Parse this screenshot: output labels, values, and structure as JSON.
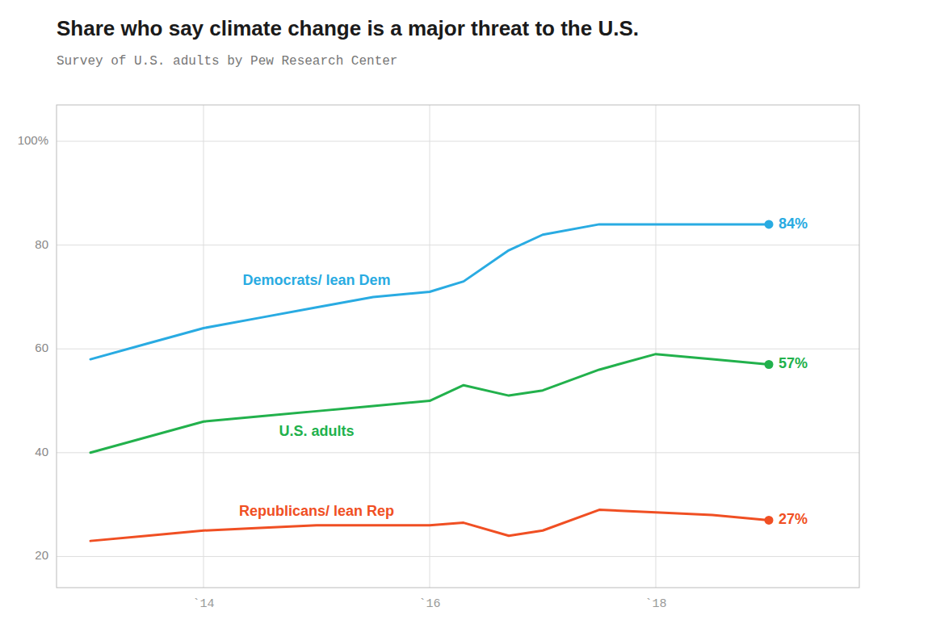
{
  "chart_data": {
    "type": "line",
    "title": "Share who say climate change is a major threat to the U.S.",
    "subtitle": "Survey of U.S. adults by Pew Research Center",
    "x": [
      2013,
      2013.5,
      2014,
      2014.5,
      2015,
      2015.5,
      2016,
      2016.3,
      2016.7,
      2017,
      2017.5,
      2018,
      2018.5,
      2019
    ],
    "series": [
      {
        "name": "Democrats/ lean Dem",
        "color": "#29abe2",
        "values": [
          58,
          61,
          64,
          66,
          68,
          70,
          71,
          73,
          79,
          82,
          84,
          84,
          84,
          84
        ],
        "value_labels": [
          null,
          null,
          null,
          null,
          null,
          null,
          null,
          null,
          null,
          null,
          null,
          null,
          null,
          "84%"
        ]
      },
      {
        "name": "U.S. adults",
        "color": "#22b14c",
        "values": [
          40,
          43,
          46,
          47,
          48,
          49,
          50,
          53,
          51,
          52,
          56,
          59,
          58,
          57
        ],
        "value_labels": [
          null,
          null,
          null,
          null,
          null,
          null,
          null,
          null,
          null,
          null,
          null,
          null,
          null,
          "57%"
        ]
      },
      {
        "name": "Republicans/ lean Rep",
        "color": "#f04f23",
        "values": [
          23,
          24,
          25,
          25.5,
          26,
          26,
          26,
          26.5,
          24,
          25,
          29,
          28.5,
          28,
          27
        ],
        "value_labels": [
          null,
          null,
          null,
          null,
          null,
          null,
          null,
          null,
          null,
          null,
          null,
          null,
          null,
          "27%"
        ]
      }
    ],
    "xlim": [
      2012.7,
      2019.8
    ],
    "xticks": [
      {
        "value": 2014,
        "label": "`14"
      },
      {
        "value": 2016,
        "label": "`16"
      },
      {
        "value": 2018,
        "label": "`18"
      }
    ],
    "ylim": [
      14,
      107
    ],
    "yticks": [
      20,
      40,
      60,
      80,
      {
        "value": 100,
        "label": "100%"
      }
    ],
    "grid": true
  }
}
